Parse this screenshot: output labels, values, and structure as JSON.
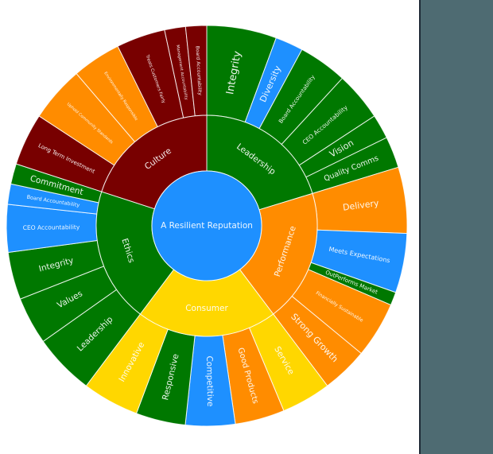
{
  "chart_data": {
    "type": "sunburst",
    "title": "",
    "center": {
      "label": "A Resilient Reputation",
      "color": "#1e90ff"
    },
    "colors": {
      "green": "#007800",
      "maroon": "#780000",
      "orange": "#ff8c00",
      "blue": "#1e90ff",
      "yellow": "#ffd700",
      "panel": "#4e6b72"
    },
    "categories": [
      {
        "label": "Leadership",
        "color": "#007800",
        "children": [
          {
            "label": "Integrity",
            "weight": 20,
            "color": "#007800",
            "size": 13
          },
          {
            "label": "Diversity",
            "weight": 8,
            "color": "#1e90ff",
            "size": 11
          },
          {
            "label": "Board Accountability",
            "weight": 14,
            "color": "#007800",
            "size": 7
          },
          {
            "label": "CEO Accountability",
            "weight": 14,
            "color": "#007800",
            "size": 7.5
          },
          {
            "label": "Vision",
            "weight": 7,
            "color": "#007800",
            "size": 11
          },
          {
            "label": "Quality Comms",
            "weight": 9,
            "color": "#007800",
            "size": 9.5
          }
        ]
      },
      {
        "label": "Performance",
        "color": "#ff8c00",
        "children": [
          {
            "label": "Delivery",
            "weight": 20,
            "color": "#ff8c00",
            "size": 11
          },
          {
            "label": "Meets Expectations",
            "weight": 18,
            "color": "#1e90ff",
            "size": 8
          },
          {
            "label": "OutPerforms Market",
            "weight": 4,
            "color": "#007800",
            "size": 7
          },
          {
            "label": "Financially Sustainable",
            "weight": 17,
            "color": "#ff8c00",
            "size": 6
          },
          {
            "label": "Strong Growth",
            "weight": 14,
            "color": "#ff8c00",
            "size": 11
          }
        ]
      },
      {
        "label": "Consumer",
        "color": "#ffd700",
        "children": [
          {
            "label": "Service",
            "weight": 14,
            "color": "#ffd700",
            "size": 10.5
          },
          {
            "label": "Good Products",
            "weight": 14,
            "color": "#ff8c00",
            "size": 10
          },
          {
            "label": "Competitive",
            "weight": 14,
            "color": "#1e90ff",
            "size": 10.5
          },
          {
            "label": "Responsive",
            "weight": 14,
            "color": "#007800",
            "size": 10.5
          },
          {
            "label": "Innovative",
            "weight": 16,
            "color": "#ffd700",
            "size": 10.5
          }
        ]
      },
      {
        "label": "Ethics",
        "color": "#007800",
        "children": [
          {
            "label": "Leadership",
            "weight": 18,
            "color": "#007800",
            "size": 10.5
          },
          {
            "label": "Values",
            "weight": 14,
            "color": "#007800",
            "size": 10.5
          },
          {
            "label": "Integrity",
            "weight": 14,
            "color": "#007800",
            "size": 10.5
          },
          {
            "label": "CEO Accountability",
            "weight": 14,
            "color": "#1e90ff",
            "size": 7.5
          },
          {
            "label": "Board Accountability",
            "weight": 6,
            "color": "#1e90ff",
            "size": 6.5
          },
          {
            "label": "Commitment",
            "weight": 6,
            "color": "#007800",
            "size": 10.5
          }
        ]
      },
      {
        "label": "Culture",
        "color": "#780000",
        "children": [
          {
            "label": "Long Term Investment",
            "weight": 15,
            "color": "#780000",
            "size": 7
          },
          {
            "label": "Uphold Community Standards",
            "weight": 16,
            "color": "#ff8c00",
            "size": 5
          },
          {
            "label": "Environmentally Responsible",
            "weight": 14,
            "color": "#ff8c00",
            "size": 5
          },
          {
            "label": "Treats Customers Fairly",
            "weight": 14,
            "color": "#780000",
            "size": 5.5
          },
          {
            "label": "Management Accountability",
            "weight": 6,
            "color": "#780000",
            "size": 5
          },
          {
            "label": "Board Accountability",
            "weight": 6,
            "color": "#780000",
            "size": 6
          }
        ]
      }
    ],
    "category_angles_deg": [
      [
        0,
        73
      ],
      [
        73,
        143
      ],
      [
        143,
        217
      ],
      [
        217,
        288
      ],
      [
        288,
        360
      ]
    ],
    "radii": {
      "center": 69,
      "inner": 139,
      "outer": 252
    },
    "center_xy": [
      260,
      284
    ],
    "legend": "none",
    "grid": false
  }
}
